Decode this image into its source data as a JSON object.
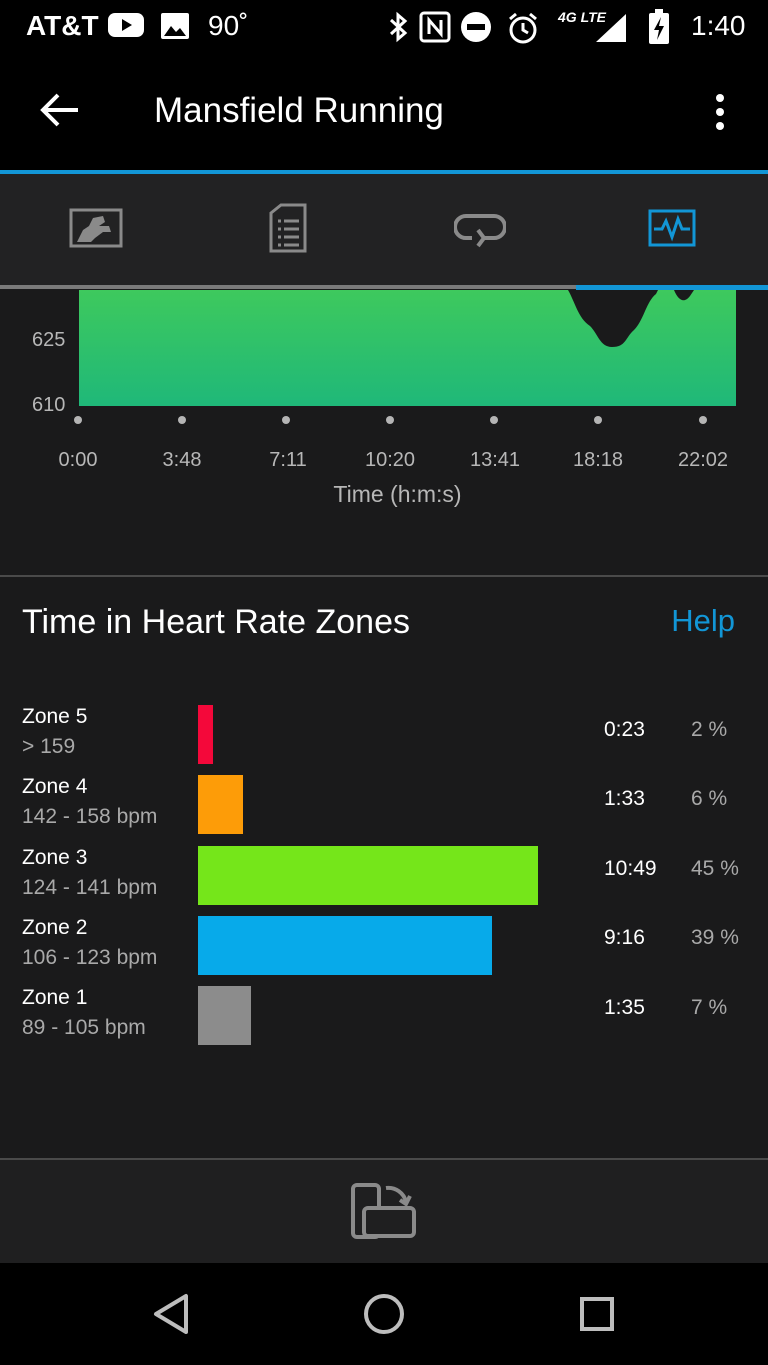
{
  "status_bar": {
    "carrier": "AT&T",
    "temperature": "90˚",
    "network": "4G LTE",
    "time": "1:40"
  },
  "app_bar": {
    "title": "Mansfield Running",
    "back_icon": "arrow-left-icon",
    "menu_icon": "more-vert-icon"
  },
  "tabs": [
    {
      "icon": "map-icon",
      "selected": false
    },
    {
      "icon": "details-icon",
      "selected": false
    },
    {
      "icon": "laps-icon",
      "selected": false
    },
    {
      "icon": "charts-icon",
      "selected": true
    }
  ],
  "accent_color": "#1296d6",
  "elevation_chart": {
    "y_ticks": [
      "625",
      "610"
    ],
    "x_ticks": [
      "0:00",
      "3:48",
      "7:11",
      "10:20",
      "13:41",
      "18:18",
      "22:02"
    ],
    "x_axis_title": "Time (h:m:s)"
  },
  "zones_section": {
    "title": "Time in Heart Rate Zones",
    "help_label": "Help",
    "zones": [
      {
        "name": "Zone 5",
        "range": "> 159",
        "time": "0:23",
        "percent": "2 %",
        "fraction": 0.02,
        "color": "#f4083a"
      },
      {
        "name": "Zone 4",
        "range": "142 - 158 bpm",
        "time": "1:33",
        "percent": "6 %",
        "fraction": 0.06,
        "color": "#fd9c08"
      },
      {
        "name": "Zone 3",
        "range": "124 - 141 bpm",
        "time": "10:49",
        "percent": "45 %",
        "fraction": 0.45,
        "color": "#75e61a"
      },
      {
        "name": "Zone 2",
        "range": "106 - 123 bpm",
        "time": "9:16",
        "percent": "39 %",
        "fraction": 0.39,
        "color": "#07aaea"
      },
      {
        "name": "Zone 1",
        "range": "89 - 105 bpm",
        "time": "1:35",
        "percent": "7 %",
        "fraction": 0.07,
        "color": "#8c8c8c"
      }
    ]
  },
  "bottom_bar": {
    "icon": "rotate-device-icon"
  },
  "nav_bar": {
    "icons": [
      "back-triangle-icon",
      "home-circle-icon",
      "recents-square-icon"
    ]
  }
}
